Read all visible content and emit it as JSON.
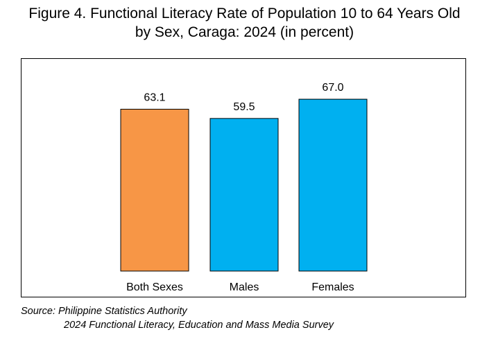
{
  "title": {
    "line1": "Figure 4. Functional Literacy Rate of Population 10 to 64 Years Old",
    "line2": "by Sex, Caraga: 2024 (in percent)"
  },
  "source": {
    "line1": "Source: Philippine Statistics Authority",
    "line2": "2024 Functional Literacy, Education and Mass Media Survey"
  },
  "chart_data": {
    "type": "bar",
    "title": "Figure 4. Functional Literacy Rate of Population 10 to 64 Years Old by Sex, Caraga: 2024 (in percent)",
    "categories": [
      "Both Sexes",
      "Males",
      "Females"
    ],
    "values": [
      63.1,
      59.5,
      67.0
    ],
    "value_labels": [
      "63.1",
      "59.5",
      "67.0"
    ],
    "colors": [
      "#F79646",
      "#00B0F0",
      "#00B0F0"
    ],
    "ylim": [
      0,
      70
    ],
    "grid": false,
    "legend": "none"
  }
}
